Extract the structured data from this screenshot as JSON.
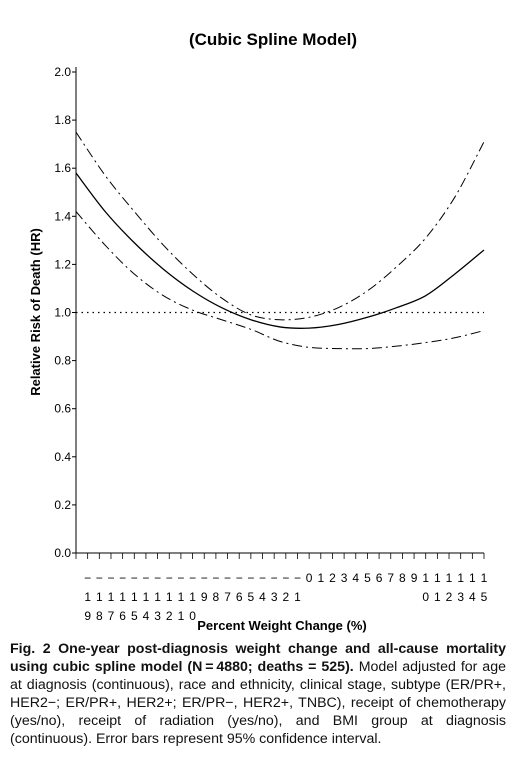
{
  "chart_data": {
    "type": "line",
    "title": "(Cubic Spline Model)",
    "xlabel": "Percent Weight Change (%)",
    "ylabel": "Relative Risk of Death (HR)",
    "x_tick_labels": [
      "-19",
      "-18",
      "-17",
      "-16",
      "-15",
      "-14",
      "-13",
      "-12",
      "-11",
      "-10",
      "-9",
      "-8",
      "-7",
      "-6",
      "-5",
      "-4",
      "-3",
      "-2",
      "-1",
      "0",
      "1",
      "2",
      "3",
      "4",
      "5",
      "6",
      "7",
      "8",
      "9",
      "10",
      "11",
      "12",
      "13",
      "14",
      "15"
    ],
    "x_range": [
      -20,
      15
    ],
    "ylim": [
      0.0,
      2.0
    ],
    "y_ticks": [
      "0.0",
      "0.2",
      "0.4",
      "0.6",
      "0.8",
      "1.0",
      "1.2",
      "1.4",
      "1.6",
      "1.8",
      "2.0"
    ],
    "reference_line_y": 1.0,
    "x": [
      -20,
      -17.5,
      -15,
      -12.5,
      -10,
      -7.5,
      -5,
      -2.5,
      0,
      2.5,
      5,
      7.5,
      10,
      12.5,
      15
    ],
    "series": [
      {
        "style": "solid",
        "values": [
          1.58,
          1.42,
          1.29,
          1.18,
          1.09,
          1.02,
          0.97,
          0.94,
          0.935,
          0.95,
          0.98,
          1.02,
          1.07,
          1.16,
          1.26
        ]
      },
      {
        "style": "dashdot",
        "values": [
          1.75,
          1.57,
          1.42,
          1.28,
          1.16,
          1.06,
          0.99,
          0.97,
          0.98,
          1.02,
          1.09,
          1.19,
          1.31,
          1.48,
          1.71
        ]
      },
      {
        "style": "dashdot",
        "values": [
          1.42,
          1.28,
          1.16,
          1.07,
          1.01,
          0.97,
          0.93,
          0.88,
          0.855,
          0.85,
          0.85,
          0.86,
          0.875,
          0.895,
          0.925
        ]
      }
    ]
  },
  "caption": {
    "label": "Fig. 2",
    "title": "One-year post-diagnosis weight change and all-cause mortality using cubic spline model (N = 4880; deaths = 525).",
    "body": "Model adjusted for age at diagnosis (continuous), race and ethnicity, clinical stage, subtype (ER/PR+, HER2−; ER/PR+, HER2+; ER/PR−, HER2+, TNBC), receipt of chemotherapy (yes/no), receipt of radiation (yes/no), and BMI group at diagnosis (continuous). Error bars represent 95% confidence interval."
  },
  "colors": {
    "lines": "#000000",
    "text": "#111111"
  }
}
